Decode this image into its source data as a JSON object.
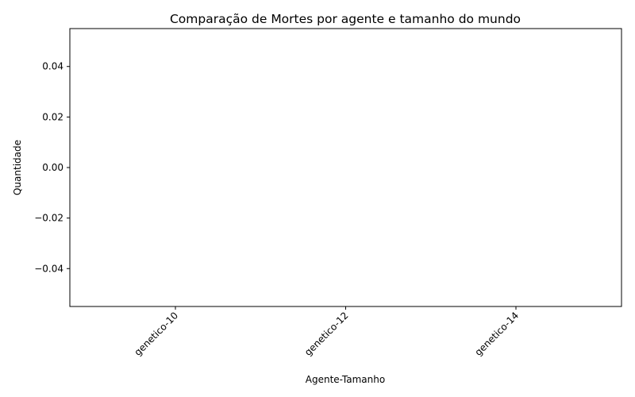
{
  "chart_data": {
    "type": "bar",
    "title": "Comparação de Mortes por agente e tamanho do mundo",
    "xlabel": "Agente-Tamanho",
    "ylabel": "Quantidade",
    "categories": [
      "genetico-10",
      "genetico-12",
      "genetico-14"
    ],
    "values": [
      0,
      0,
      0
    ],
    "ylim": [
      -0.055,
      0.055
    ],
    "yticks": [
      -0.04,
      -0.02,
      0.0,
      0.02,
      0.04
    ],
    "ytick_labels": [
      "−0.04",
      "−0.02",
      "0.00",
      "0.02",
      "0.04"
    ],
    "xtick_rotation": 45,
    "grid": false,
    "bar_color": "#1f77b4"
  }
}
